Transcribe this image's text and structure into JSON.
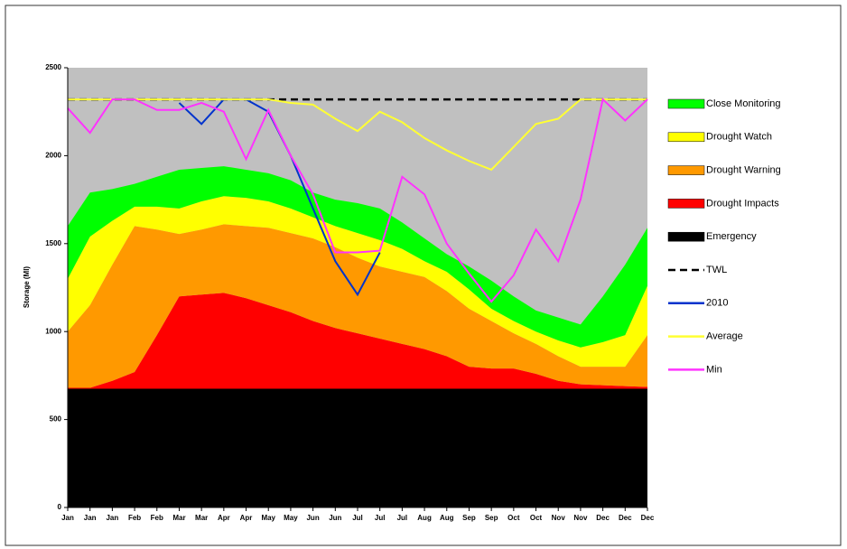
{
  "chart_data": {
    "type": "area",
    "stacked": true,
    "y_label": "Storage (Ml)",
    "categories": [
      "Jan",
      "Jan",
      "Jan",
      "Feb",
      "Feb",
      "Mar",
      "Mar",
      "Apr",
      "Apr",
      "May",
      "May",
      "Jun",
      "Jun",
      "Jul",
      "Jul",
      "Jul",
      "Aug",
      "Aug",
      "Sep",
      "Sep",
      "Oct",
      "Oct",
      "Nov",
      "Nov",
      "Dec",
      "Dec",
      "Dec"
    ],
    "ylim": [
      0,
      2500
    ],
    "yticks": [
      0,
      500,
      1000,
      1500,
      2000,
      2500
    ],
    "plot_background": "#c0c0c0",
    "series": [
      {
        "name": "Emergency",
        "type": "area",
        "color": "#000000",
        "values": [
          675,
          675,
          675,
          675,
          675,
          675,
          675,
          675,
          675,
          675,
          675,
          675,
          675,
          675,
          675,
          675,
          675,
          675,
          675,
          675,
          675,
          675,
          675,
          675,
          675,
          675,
          675
        ]
      },
      {
        "name": "Drought Impacts",
        "type": "area",
        "color": "#ff0000",
        "values": [
          5,
          5,
          45,
          95,
          305,
          525,
          535,
          545,
          515,
          475,
          435,
          385,
          345,
          315,
          285,
          255,
          225,
          185,
          125,
          115,
          115,
          85,
          45,
          25,
          20,
          15,
          10
        ]
      },
      {
        "name": "Drought Warning",
        "type": "area",
        "color": "#ff9900",
        "values": [
          320,
          470,
          660,
          830,
          600,
          355,
          370,
          390,
          410,
          440,
          450,
          470,
          460,
          430,
          410,
          410,
          410,
          370,
          330,
          270,
          200,
          170,
          140,
          100,
          105,
          110,
          295
        ]
      },
      {
        "name": "Drought Watch",
        "type": "area",
        "color": "#ffff00",
        "values": [
          300,
          390,
          250,
          110,
          130,
          145,
          160,
          160,
          160,
          150,
          140,
          120,
          120,
          140,
          150,
          130,
          90,
          110,
          110,
          70,
          70,
          70,
          90,
          110,
          140,
          180,
          280
        ]
      },
      {
        "name": "Close Monitoring",
        "type": "area",
        "color": "#00ff00",
        "values": [
          300,
          250,
          180,
          130,
          170,
          220,
          190,
          170,
          160,
          160,
          160,
          140,
          150,
          170,
          180,
          150,
          130,
          100,
          130,
          160,
          140,
          120,
          130,
          130,
          260,
          400,
          330
        ]
      },
      {
        "name": "TWL",
        "type": "line",
        "dashed": true,
        "color": "#000000",
        "values": [
          2320,
          2320,
          2320,
          2320,
          2320,
          2320,
          2320,
          2320,
          2320,
          2320,
          2320,
          2320,
          2320,
          2320,
          2320,
          2320,
          2320,
          2320,
          2320,
          2320,
          2320,
          2320,
          2320,
          2320,
          2320,
          2320,
          2320
        ]
      },
      {
        "name": "2010",
        "type": "line",
        "color": "#0033cc",
        "values": [
          null,
          null,
          null,
          null,
          null,
          2300,
          2180,
          2320,
          2320,
          2250,
          2000,
          1700,
          1400,
          1210,
          1450,
          null,
          null,
          null,
          null,
          null,
          null,
          null,
          null,
          null,
          null,
          null,
          null
        ]
      },
      {
        "name": "Average",
        "type": "line",
        "color": "#ffff33",
        "values": [
          2320,
          2320,
          2320,
          2320,
          2320,
          2320,
          2320,
          2320,
          2320,
          2320,
          2300,
          2290,
          2210,
          2140,
          2250,
          2190,
          2100,
          2030,
          1970,
          1920,
          2050,
          2180,
          2210,
          2320,
          2320,
          2320,
          2320
        ]
      },
      {
        "name": "Min",
        "type": "line",
        "color": "#ff33ff",
        "values": [
          2270,
          2130,
          2320,
          2320,
          2260,
          2260,
          2300,
          2250,
          1980,
          2260,
          2000,
          1780,
          1450,
          1450,
          1460,
          1880,
          1780,
          1500,
          1330,
          1170,
          1320,
          1580,
          1400,
          1750,
          2320,
          2200,
          2320
        ]
      }
    ],
    "legend_order": [
      4,
      3,
      2,
      1,
      0,
      5,
      6,
      7,
      8
    ]
  }
}
